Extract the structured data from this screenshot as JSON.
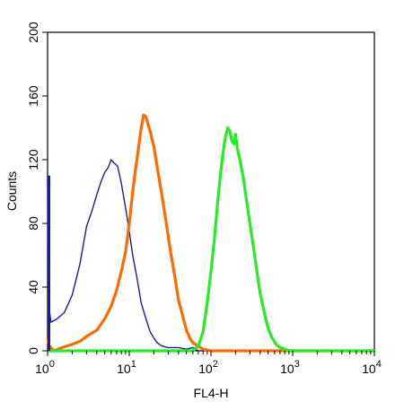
{
  "chart_data": {
    "type": "line",
    "xlabel": "FL4-H",
    "ylabel": "Counts",
    "xscale": "log",
    "xlim": [
      1,
      10000
    ],
    "ylim": [
      0,
      200
    ],
    "x_ticks": [
      {
        "base": "10",
        "exp": "0"
      },
      {
        "base": "10",
        "exp": "1"
      },
      {
        "base": "10",
        "exp": "2"
      },
      {
        "base": "10",
        "exp": "3"
      },
      {
        "base": "10",
        "exp": "4"
      }
    ],
    "y_ticks": [
      "0",
      "40",
      "80",
      "120",
      "160",
      "200"
    ],
    "grid": false,
    "series": [
      {
        "color": "#1a1aa8",
        "points": [
          [
            1.0,
            110
          ],
          [
            1.02,
            30
          ],
          [
            1.1,
            18
          ],
          [
            1.3,
            20
          ],
          [
            1.6,
            24
          ],
          [
            2.0,
            35
          ],
          [
            2.5,
            55
          ],
          [
            3.0,
            78
          ],
          [
            3.5,
            88
          ],
          [
            4.0,
            98
          ],
          [
            4.5,
            106
          ],
          [
            5.0,
            112
          ],
          [
            5.5,
            115
          ],
          [
            6.0,
            120
          ],
          [
            6.5,
            118
          ],
          [
            7.2,
            116
          ],
          [
            8.0,
            105
          ],
          [
            9.0,
            90
          ],
          [
            10.0,
            75
          ],
          [
            11.0,
            60
          ],
          [
            12.5,
            45
          ],
          [
            14.0,
            30
          ],
          [
            16.0,
            20
          ],
          [
            18.0,
            12
          ],
          [
            20.0,
            8
          ],
          [
            22.0,
            5
          ],
          [
            25.0,
            3
          ],
          [
            30.0,
            2
          ],
          [
            40.0,
            2
          ],
          [
            50.0,
            1
          ],
          [
            60.0,
            2
          ],
          [
            70.0,
            0
          ]
        ]
      },
      {
        "color": "#ff6a00",
        "points": [
          [
            1.0,
            8
          ],
          [
            1.05,
            3
          ],
          [
            1.2,
            0
          ],
          [
            1.5,
            2
          ],
          [
            2.0,
            4
          ],
          [
            2.5,
            6
          ],
          [
            3.0,
            9
          ],
          [
            4.0,
            13
          ],
          [
            5.0,
            20
          ],
          [
            6.0,
            28
          ],
          [
            7.0,
            38
          ],
          [
            8.0,
            50
          ],
          [
            9.0,
            62
          ],
          [
            10.0,
            80
          ],
          [
            11.0,
            100
          ],
          [
            12.0,
            115
          ],
          [
            13.0,
            128
          ],
          [
            14.0,
            140
          ],
          [
            15.0,
            148
          ],
          [
            16.0,
            147
          ],
          [
            17.0,
            142
          ],
          [
            18.0,
            138
          ],
          [
            20.0,
            128
          ],
          [
            22.0,
            115
          ],
          [
            25.0,
            98
          ],
          [
            28.0,
            82
          ],
          [
            32.0,
            62
          ],
          [
            36.0,
            47
          ],
          [
            40.0,
            32
          ],
          [
            45.0,
            22
          ],
          [
            50.0,
            13
          ],
          [
            55.0,
            8
          ],
          [
            60.0,
            5
          ],
          [
            70.0,
            3
          ],
          [
            80.0,
            1
          ],
          [
            100.0,
            0
          ],
          [
            10000,
            0
          ]
        ]
      },
      {
        "color": "#22ee22",
        "points": [
          [
            1.0,
            0
          ],
          [
            60.0,
            0
          ],
          [
            70.0,
            3
          ],
          [
            80.0,
            12
          ],
          [
            90.0,
            30
          ],
          [
            100.0,
            50
          ],
          [
            110.0,
            70
          ],
          [
            120.0,
            92
          ],
          [
            130.0,
            110
          ],
          [
            140.0,
            124
          ],
          [
            150.0,
            134
          ],
          [
            160.0,
            140
          ],
          [
            170.0,
            138
          ],
          [
            180.0,
            132
          ],
          [
            190.0,
            130
          ],
          [
            200.0,
            136
          ],
          [
            210.0,
            127
          ],
          [
            230.0,
            118
          ],
          [
            250.0,
            108
          ],
          [
            280.0,
            90
          ],
          [
            320.0,
            70
          ],
          [
            360.0,
            52
          ],
          [
            400.0,
            36
          ],
          [
            450.0,
            24
          ],
          [
            500.0,
            14
          ],
          [
            560.0,
            8
          ],
          [
            630.0,
            4
          ],
          [
            700.0,
            2
          ],
          [
            800.0,
            1
          ],
          [
            900.0,
            0
          ],
          [
            10000,
            0
          ]
        ]
      }
    ]
  }
}
